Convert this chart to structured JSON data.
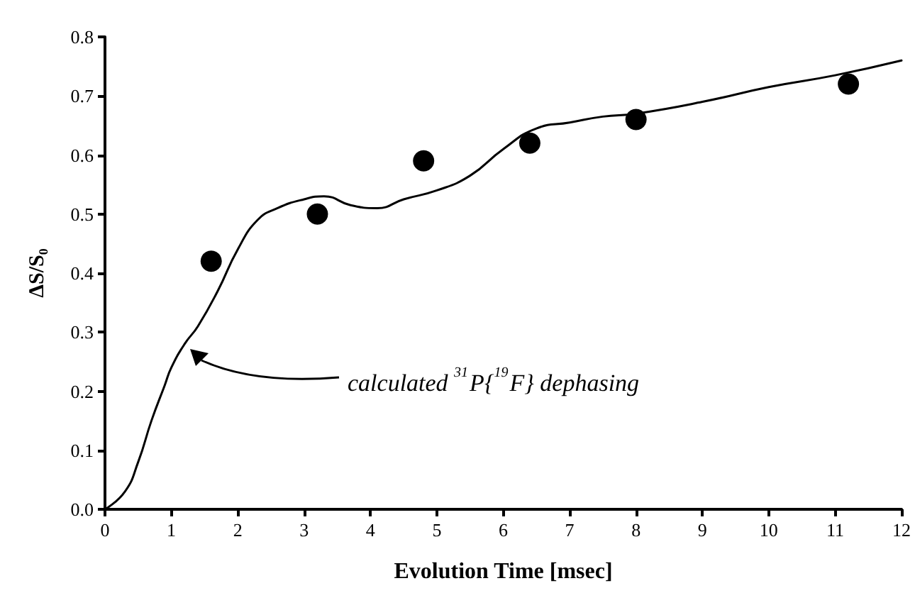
{
  "chart_data": {
    "type": "scatter",
    "xlabel": "Evolution Time [msec]",
    "ylabel": "ΔS/S₀",
    "xlim": [
      0,
      12
    ],
    "xticks": [
      0,
      1,
      2,
      3,
      4,
      5,
      6,
      7,
      8,
      9,
      10,
      11,
      12
    ],
    "ylim": [
      0,
      0.8
    ],
    "yticks": [
      {
        "value": 0,
        "label": "0.0"
      },
      {
        "value": 0.1,
        "label": "0.1"
      },
      {
        "value": 0.2,
        "label": "0.2"
      },
      {
        "value": 0.3,
        "label": "0.3"
      },
      {
        "value": 0.4,
        "label": "0.4"
      },
      {
        "value": 0.5,
        "label": "0.5"
      },
      {
        "value": 0.6,
        "label": "0.6"
      },
      {
        "value": 0.7,
        "label": "0.7"
      },
      {
        "value": 0.8,
        "label": "0.8"
      }
    ],
    "grid": false,
    "series": [
      {
        "type": "line",
        "color": "#000000",
        "line_style": "solid",
        "x": [
          0,
          0.3,
          0.5,
          0.7,
          0.9,
          1.0,
          1.2,
          1.4,
          1.7,
          2.0,
          2.3,
          2.6,
          3.0,
          3.3,
          3.7,
          4.1,
          4.5,
          5.0,
          5.5,
          6.0,
          6.5,
          7.0,
          7.5,
          8.0,
          9.0,
          10.0,
          11.0,
          12.0
        ],
        "values": [
          0,
          0.03,
          0.08,
          0.15,
          0.21,
          0.24,
          0.28,
          0.31,
          0.37,
          0.44,
          0.49,
          0.51,
          0.525,
          0.53,
          0.515,
          0.51,
          0.525,
          0.54,
          0.565,
          0.61,
          0.645,
          0.655,
          0.665,
          0.67,
          0.69,
          0.715,
          0.735,
          0.76
        ]
      },
      {
        "color": "#000000",
        "marker": "circle",
        "x": [
          1.6,
          3.2,
          4.8,
          6.4,
          8.0,
          11.2
        ],
        "values": [
          0.42,
          0.5,
          0.59,
          0.62,
          0.66,
          0.72
        ]
      }
    ],
    "annotations": [
      "calculated $^{31}$P{$^{19}$F} dephasing"
    ]
  }
}
